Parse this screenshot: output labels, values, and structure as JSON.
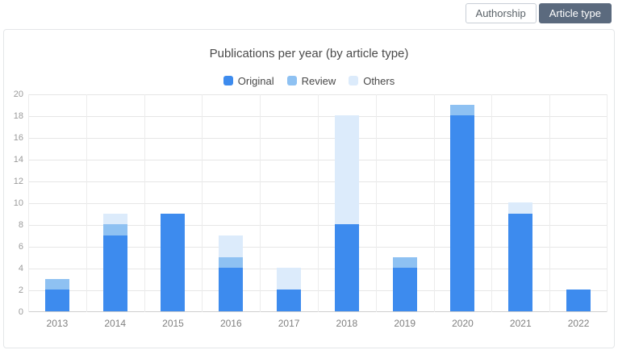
{
  "toolbar": {
    "buttons": [
      {
        "label": "Authorship",
        "active": false
      },
      {
        "label": "Article type",
        "active": true
      }
    ]
  },
  "colors": {
    "button_active_bg": "#5b6a7e",
    "button_active_text": "#ffffff"
  },
  "chart_data": {
    "type": "bar",
    "stacked": true,
    "title": "Publications per year (by article type)",
    "categories": [
      "2013",
      "2014",
      "2015",
      "2016",
      "2017",
      "2018",
      "2019",
      "2020",
      "2021",
      "2022"
    ],
    "series": [
      {
        "name": "Original",
        "color": "#3d8bee",
        "values": [
          2,
          7,
          9,
          4,
          2,
          8,
          4,
          18,
          9,
          2
        ]
      },
      {
        "name": "Review",
        "color": "#8ec1f2",
        "values": [
          1,
          1,
          0,
          1,
          0,
          0,
          1,
          1,
          0,
          0
        ]
      },
      {
        "name": "Others",
        "color": "#dcebfb",
        "values": [
          0,
          1,
          0,
          2,
          2,
          10,
          0,
          0,
          1,
          0
        ]
      }
    ],
    "ylim": [
      0,
      20
    ],
    "ytick_step": 2,
    "grid": true,
    "legend_position": "top",
    "xlabel": "",
    "ylabel": ""
  }
}
